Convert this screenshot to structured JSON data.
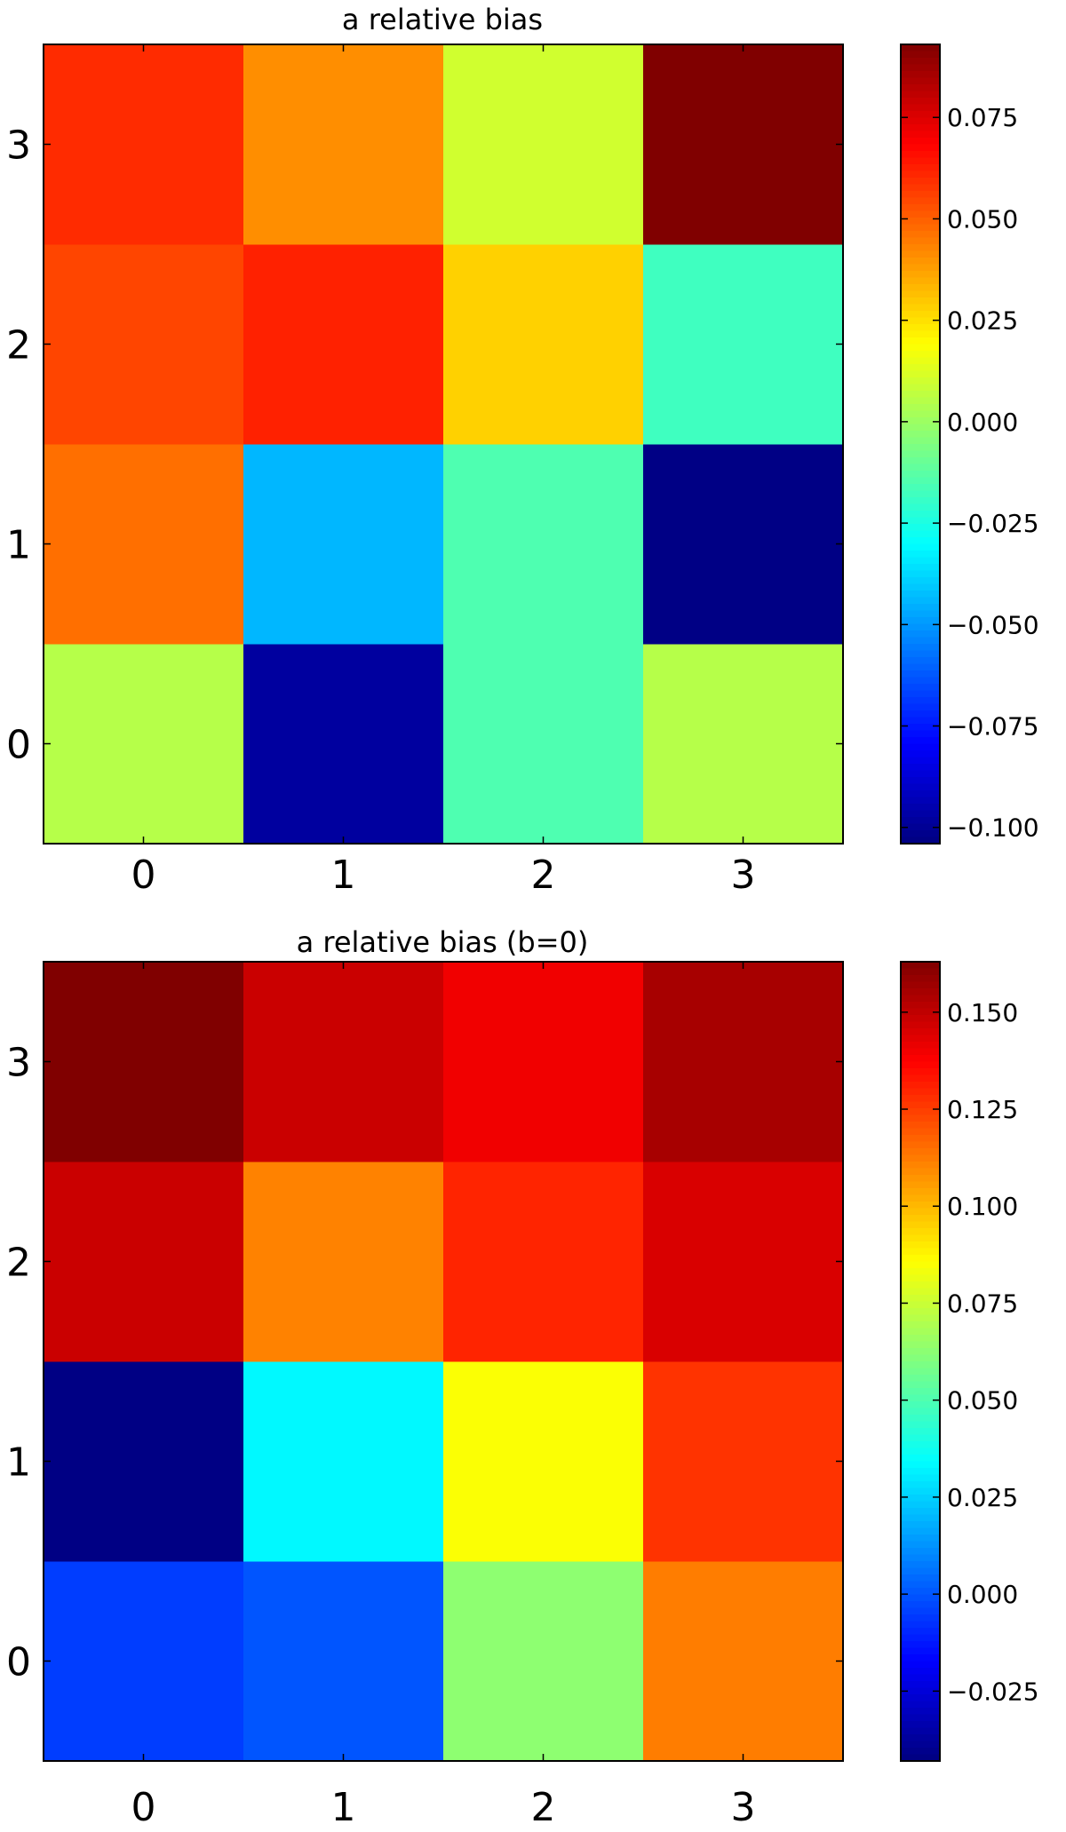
{
  "chart_data": [
    {
      "type": "heatmap",
      "title": "a relative bias",
      "x": [
        0,
        1,
        2,
        3
      ],
      "y": [
        0,
        1,
        2,
        3
      ],
      "xticks": [
        "0",
        "1",
        "2",
        "3"
      ],
      "yticks": [
        "0",
        "1",
        "2",
        "3"
      ],
      "values": [
        [
          0.005,
          -0.098,
          -0.015,
          0.005
        ],
        [
          0.047,
          -0.044,
          -0.015,
          -0.103
        ],
        [
          0.055,
          0.062,
          0.028,
          -0.018
        ],
        [
          0.06,
          0.041,
          0.01,
          0.093
        ]
      ],
      "colormap": "jet",
      "vmin": -0.104,
      "vmax": 0.093,
      "colorbar_ticks": [
        0.075,
        0.05,
        0.025,
        0.0,
        -0.025,
        -0.05,
        -0.075,
        -0.1
      ],
      "colorbar_labels": [
        "0.075",
        "0.050",
        "0.025",
        "0.000",
        "−0.025",
        "−0.050",
        "−0.075",
        "−0.100"
      ]
    },
    {
      "type": "heatmap",
      "title": "a relative bias (b=0)",
      "x": [
        0,
        1,
        2,
        3
      ],
      "y": [
        0,
        1,
        2,
        3
      ],
      "xticks": [
        "0",
        "1",
        "2",
        "3"
      ],
      "yticks": [
        "0",
        "1",
        "2",
        "3"
      ],
      "values": [
        [
          -0.005,
          0.0,
          0.063,
          0.112
        ],
        [
          -0.042,
          0.033,
          0.085,
          0.127
        ],
        [
          0.148,
          0.111,
          0.13,
          0.145
        ],
        [
          0.163,
          0.148,
          0.14,
          0.155
        ]
      ],
      "colormap": "jet",
      "vmin": -0.043,
      "vmax": 0.163,
      "colorbar_ticks": [
        0.15,
        0.125,
        0.1,
        0.075,
        0.05,
        0.025,
        0.0,
        -0.025
      ],
      "colorbar_labels": [
        "0.150",
        "0.125",
        "0.100",
        "0.075",
        "0.050",
        "0.025",
        "0.000",
        "−0.025"
      ]
    }
  ]
}
